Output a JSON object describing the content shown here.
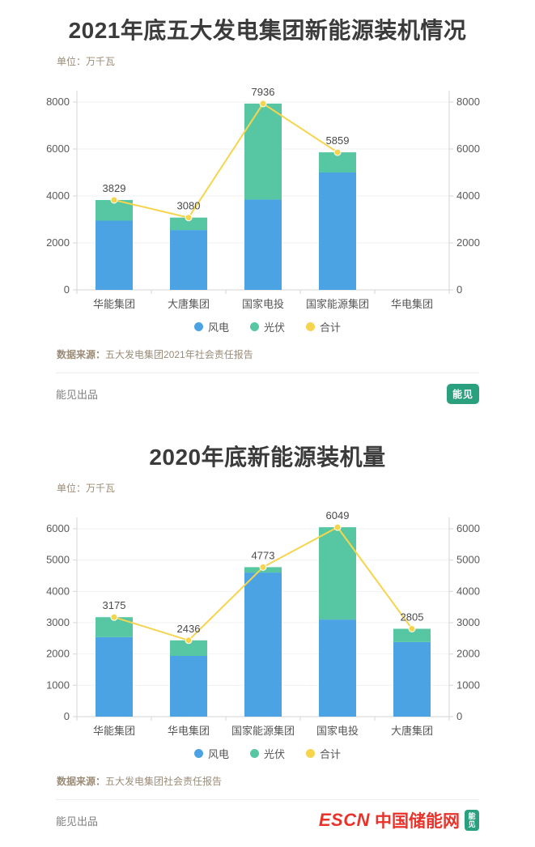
{
  "colors": {
    "wind_blue": "#4BA3E3",
    "solar_green": "#56C7A2",
    "total_yellow": "#F6D44D",
    "title_text": "#3B3B3B",
    "axis_line": "#D6D6D6",
    "tick_text": "#5A5A5A",
    "muted_brown_text": "#9B8C78",
    "brand_red": "#E8322A",
    "logo_green": "#2BA07F"
  },
  "chart_data": [
    {
      "type": "bar",
      "stacked": true,
      "title": "2021年底五大发电集团新能源装机情况",
      "unit": "单位：万千瓦",
      "xlabel": "",
      "ylabel": "万千瓦",
      "grid": true,
      "legend_position": "bottom",
      "categories": [
        "华能集团",
        "大唐集团",
        "国家电投",
        "国家能源集团",
        "华电集团"
      ],
      "series": [
        {
          "name": "风电",
          "type": "bar",
          "color": "#4BA3E3",
          "values": [
            2950,
            2550,
            3850,
            5000,
            null
          ]
        },
        {
          "name": "光伏",
          "type": "bar",
          "color": "#56C7A2",
          "values": [
            879,
            530,
            4086,
            859,
            null
          ]
        },
        {
          "name": "合计",
          "type": "line",
          "color": "#F6D44D",
          "values": [
            3829,
            3080,
            7936,
            5859,
            null
          ]
        }
      ],
      "totals": [
        3829,
        3080,
        7936,
        5859,
        null
      ],
      "ylim": [
        0,
        8000
      ],
      "yticks": [
        0,
        2000,
        4000,
        6000,
        8000
      ]
    },
    {
      "type": "bar",
      "stacked": true,
      "title": "2020年底新能源装机量",
      "unit": "单位：万千瓦",
      "xlabel": "",
      "ylabel": "万千瓦",
      "grid": true,
      "legend_position": "bottom",
      "categories": [
        "华能集团",
        "华电集团",
        "国家能源集团",
        "国家电投",
        "大唐集团"
      ],
      "series": [
        {
          "name": "风电",
          "type": "bar",
          "color": "#4BA3E3",
          "values": [
            2540,
            1940,
            4600,
            3100,
            2380
          ]
        },
        {
          "name": "光伏",
          "type": "bar",
          "color": "#56C7A2",
          "values": [
            635,
            496,
            173,
            2949,
            425
          ]
        },
        {
          "name": "合计",
          "type": "line",
          "color": "#F6D44D",
          "values": [
            3175,
            2436,
            4773,
            6049,
            2805
          ]
        }
      ],
      "totals": [
        3175,
        2436,
        4773,
        6049,
        2805
      ],
      "ylim": [
        0,
        6000
      ],
      "yticks": [
        0,
        1000,
        2000,
        3000,
        4000,
        5000,
        6000
      ]
    }
  ],
  "sections": [
    {
      "source_label": "数据来源：",
      "source_text": "五大发电集团2021年社会责任报告",
      "credit": "能见出品",
      "logo_text": "能见"
    },
    {
      "source_label": "数据来源：",
      "source_text": "五大发电集团社会责任报告",
      "credit": "能见出品",
      "brand_escn": "ESCN",
      "brand_cn": "中国储能网",
      "logo_text": "能见"
    }
  ]
}
